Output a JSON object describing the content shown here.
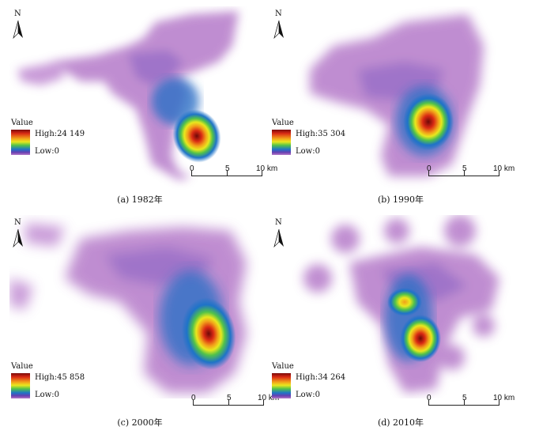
{
  "north_label": "N",
  "legend": {
    "title": "Value",
    "low": "Low:0"
  },
  "scale": {
    "t0": "0",
    "t5": "5",
    "t10": "10 km"
  },
  "panels": [
    {
      "caption": "(a) 1982年",
      "high": "High:24 149",
      "hotspot": "single-core"
    },
    {
      "caption": "(b) 1990年",
      "high": "High:35 304",
      "hotspot": "single-core"
    },
    {
      "caption": "(c) 2000年",
      "high": "High:45 858",
      "hotspot": "single-core"
    },
    {
      "caption": "(d) 2010年",
      "high": "High:34 264",
      "hotspot": "dual-core"
    }
  ],
  "colors": {
    "low": "#b57ac9",
    "mid": "#1e73c8",
    "green": "#52c24a",
    "yellow": "#e8e81e",
    "high": "#7a0a0a"
  }
}
